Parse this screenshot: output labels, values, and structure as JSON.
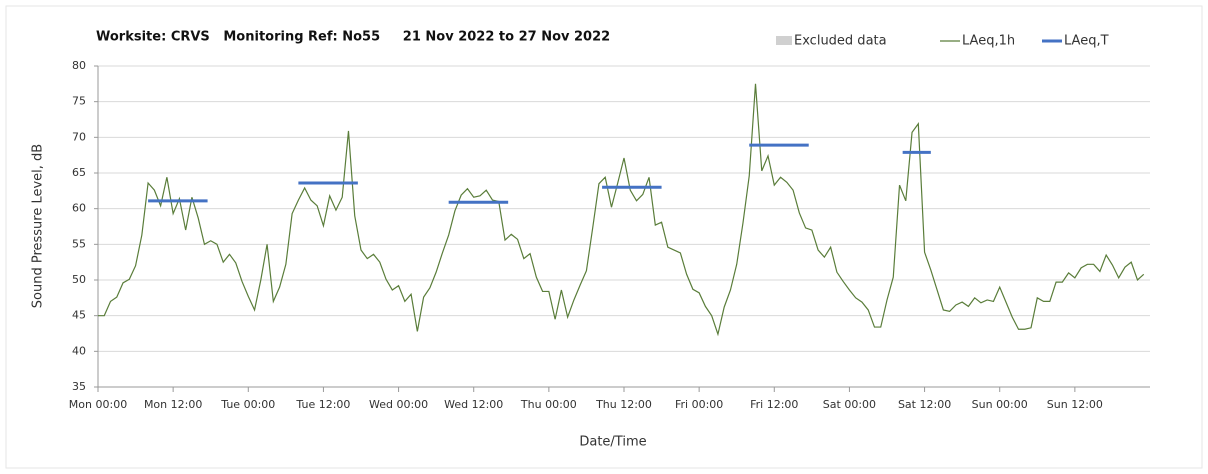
{
  "chart_data": {
    "type": "line",
    "title": "Worksite: CRVS   Monitoring Ref: No55     21 Nov 2022 to 27 Nov 2022",
    "xlabel": "Date/Time",
    "ylabel": "Sound Pressure Level, dB",
    "xlim": [
      0,
      168
    ],
    "ylim": [
      35,
      80
    ],
    "yticks": [
      35,
      40,
      45,
      50,
      55,
      60,
      65,
      70,
      75,
      80
    ],
    "xticks": [
      {
        "value": 0,
        "label": "Mon 00:00"
      },
      {
        "value": 12,
        "label": "Mon 12:00"
      },
      {
        "value": 24,
        "label": "Tue 00:00"
      },
      {
        "value": 36,
        "label": "Tue 12:00"
      },
      {
        "value": 48,
        "label": "Wed 00:00"
      },
      {
        "value": 60,
        "label": "Wed 12:00"
      },
      {
        "value": 72,
        "label": "Thu 00:00"
      },
      {
        "value": 84,
        "label": "Thu 12:00"
      },
      {
        "value": 96,
        "label": "Fri 00:00"
      },
      {
        "value": 108,
        "label": "Fri 12:00"
      },
      {
        "value": 120,
        "label": "Sat 00:00"
      },
      {
        "value": 132,
        "label": "Sat 12:00"
      },
      {
        "value": 144,
        "label": "Sun 00:00"
      },
      {
        "value": 156,
        "label": "Sun 12:00"
      }
    ],
    "grid": true,
    "legend": [
      "Excluded data"
    ],
    "legend_colors": [
      "#d0d0d0"
    ],
    "series": [
      {
        "name": "LAeq,1h",
        "color": "#5a7d3a",
        "x": [
          0,
          1,
          2,
          3,
          4,
          5,
          6,
          7,
          8,
          9,
          10,
          11,
          12,
          13,
          14,
          15,
          16,
          17,
          18,
          19,
          20,
          21,
          22,
          23,
          24,
          25,
          26,
          27,
          28,
          29,
          30,
          31,
          32,
          33,
          34,
          35,
          36,
          37,
          38,
          39,
          40,
          41,
          42,
          43,
          44,
          45,
          46,
          47,
          48,
          49,
          50,
          51,
          52,
          53,
          54,
          55,
          56,
          57,
          58,
          59,
          60,
          61,
          62,
          63,
          64,
          65,
          66,
          67,
          68,
          69,
          70,
          71,
          72,
          73,
          74,
          75,
          76,
          77,
          78,
          79,
          80,
          81,
          82,
          83,
          84,
          85,
          86,
          87,
          88,
          89,
          90,
          91,
          92,
          93,
          94,
          95,
          96,
          97,
          98,
          99,
          100,
          101,
          102,
          103,
          104,
          105,
          106,
          107,
          108,
          109,
          110,
          111,
          112,
          113,
          114,
          115,
          116,
          117,
          118,
          119,
          120,
          121,
          122,
          123,
          124,
          125,
          126,
          127,
          128,
          129,
          130,
          131,
          132,
          133,
          134,
          135,
          136,
          137,
          138,
          139,
          140,
          141,
          142,
          143,
          144,
          145,
          146,
          147,
          148,
          149,
          150,
          151,
          152,
          153,
          154,
          155,
          156,
          157,
          158,
          159,
          160,
          161,
          162,
          163,
          164,
          165,
          166,
          167
        ],
        "values": [
          45,
          45,
          47,
          47.6,
          49.6,
          50.1,
          52,
          56.3,
          63.6,
          62.6,
          60.4,
          64.4,
          59.3,
          61.4,
          57,
          61.6,
          58.7,
          55,
          55.5,
          55,
          52.5,
          53.6,
          52.4,
          49.8,
          47.7,
          45.8,
          50,
          55,
          47,
          49,
          52.2,
          59.3,
          61.2,
          62.9,
          61.2,
          60.4,
          57.6,
          61.8,
          59.8,
          61.6,
          70.9,
          59,
          54.2,
          53,
          53.6,
          52.5,
          50.1,
          48.6,
          49.2,
          47,
          48,
          42.8,
          47.6,
          48.9,
          51.1,
          53.8,
          56.3,
          59.7,
          61.9,
          62.8,
          61.6,
          61.8,
          62.6,
          61.2,
          61,
          55.6,
          56.4,
          55.7,
          53,
          53.7,
          50.4,
          48.4,
          48.4,
          44.5,
          48.6,
          44.8,
          47.2,
          49.3,
          51.3,
          57.3,
          63.5,
          64.4,
          60.2,
          63.6,
          67.1,
          62.6,
          61.1,
          62,
          64.4,
          57.7,
          58.1,
          54.6,
          54.2,
          53.8,
          50.8,
          48.7,
          48.2,
          46.3,
          45,
          42.4,
          46.2,
          48.6,
          52.2,
          58,
          64.6,
          77.5,
          65.3,
          67.4,
          63.3,
          64.4,
          63.7,
          62.6,
          59.4,
          57.3,
          57,
          54.2,
          53.2,
          54.6,
          51.1,
          49.8,
          48.6,
          47.5,
          46.9,
          45.8,
          43.4,
          43.4,
          47.2,
          50.4,
          63.3,
          61.1,
          70.7,
          71.9,
          53.9,
          51.4,
          48.6,
          45.8,
          45.6,
          46.5,
          46.9,
          46.3,
          47.5,
          46.8,
          47.2,
          47,
          49,
          46.9,
          44.8,
          43.1,
          43.1,
          43.3,
          47.5,
          47,
          47,
          49.7,
          49.7,
          51,
          50.3,
          51.7,
          52.2,
          52.2,
          51.2,
          53.5,
          52.1,
          50.3,
          51.8,
          52.5,
          50,
          50.8
        ]
      },
      {
        "name": "LAeq,T",
        "color": "#4472c4",
        "segments": [
          {
            "start": 8,
            "end": 17.5,
            "value": 61.1
          },
          {
            "start": 32,
            "end": 41.5,
            "value": 63.6
          },
          {
            "start": 56,
            "end": 65.5,
            "value": 60.9
          },
          {
            "start": 80.5,
            "end": 90,
            "value": 63
          },
          {
            "start": 104,
            "end": 113.5,
            "value": 68.9
          },
          {
            "start": 128.5,
            "end": 133,
            "value": 67.9
          }
        ]
      }
    ]
  }
}
